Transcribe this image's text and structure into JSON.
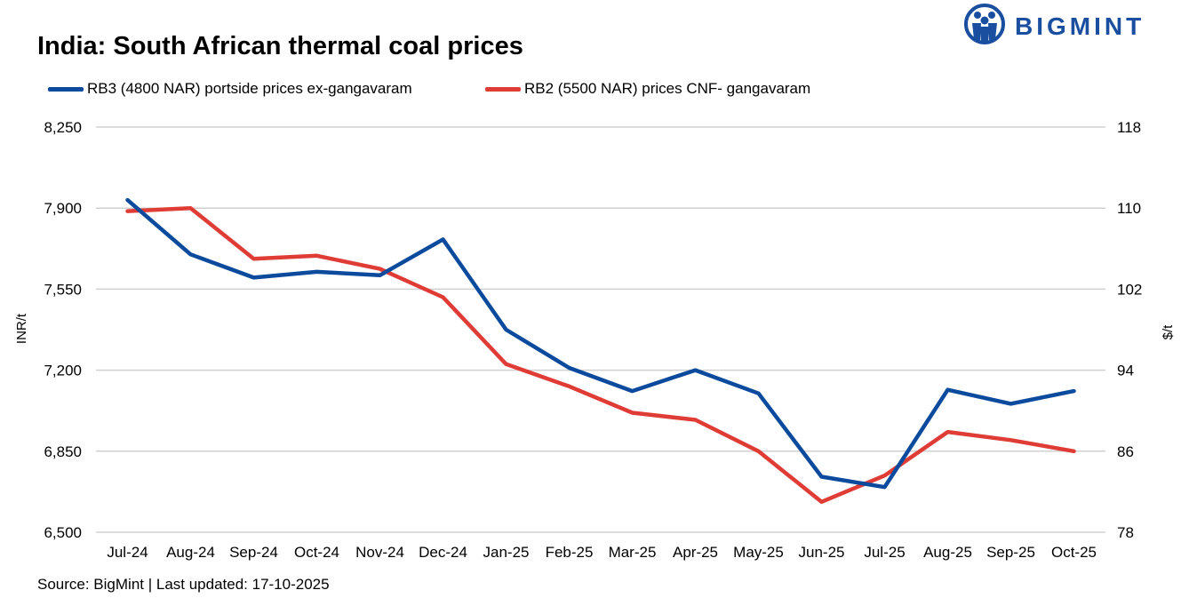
{
  "header": {
    "title": "India: South African thermal coal prices",
    "logo_text": "BIGMINT"
  },
  "colors": {
    "rb3": "#0b4a9c",
    "rb2": "#e03c36",
    "grid": "#d0d0d0",
    "logo": "#1a4fa0"
  },
  "footer": {
    "source": "Source: BigMint | Last updated: 17-10-2025"
  },
  "chart_data": {
    "type": "line",
    "title": "India: South African thermal coal prices",
    "categories": [
      "Jul-24",
      "Aug-24",
      "Sep-24",
      "Oct-24",
      "Nov-24",
      "Dec-24",
      "Jan-25",
      "Feb-25",
      "Mar-25",
      "Apr-25",
      "May-25",
      "Jun-25",
      "Jul-25",
      "Aug-25",
      "Sep-25",
      "Oct-25"
    ],
    "ylabel_left": "INR/t",
    "ylabel_right": "$/t",
    "ylim_left": [
      6500,
      8250
    ],
    "ylim_right": [
      78,
      118
    ],
    "yticks_left": [
      "8,250",
      "7,900",
      "7,550",
      "7,200",
      "6,850",
      "6,500"
    ],
    "yticks_right": [
      "118",
      "110",
      "102",
      "94",
      "86",
      "78"
    ],
    "grid": true,
    "legend_position": "top-left",
    "series": [
      {
        "name": "RB3 (4800 NAR) portside prices ex-gangavaram",
        "axis": "left",
        "values": [
          7935,
          7700,
          7600,
          7625,
          7610,
          7765,
          7375,
          7210,
          7110,
          7200,
          7100,
          6740,
          6695,
          7115,
          7055,
          7110
        ]
      },
      {
        "name": "RB2 (5500 NAR) prices CNF- gangavaram",
        "axis": "right",
        "values": [
          109.7,
          110.0,
          105.0,
          105.3,
          104.0,
          101.2,
          94.6,
          92.4,
          89.8,
          89.1,
          86.0,
          81.0,
          83.6,
          87.9,
          87.1,
          86.0
        ]
      }
    ]
  }
}
